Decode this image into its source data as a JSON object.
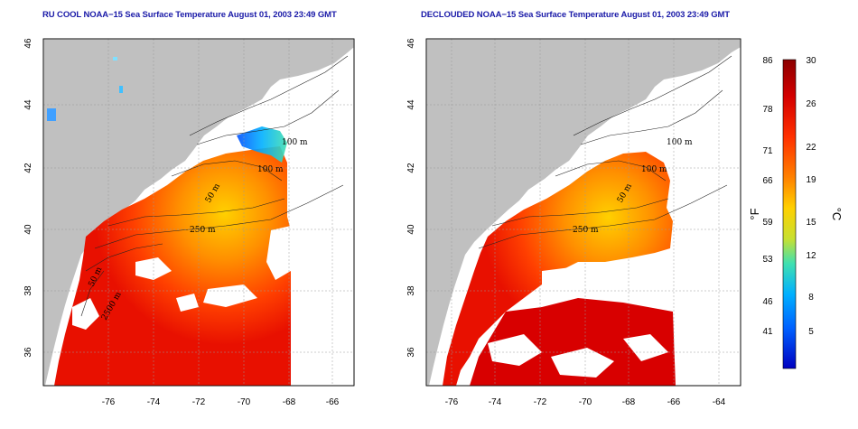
{
  "panels": [
    {
      "id": "ru-cool",
      "title": "RU COOL NOAA−15 Sea Surface Temperature August 01, 2003 23:49 GMT",
      "depth_labels": [
        "100 m",
        "100 m",
        "50 m",
        "250 m",
        "50 m",
        "2500 m"
      ]
    },
    {
      "id": "declouded",
      "title": "DECLOUDED NOAA−15 Sea Surface Temperature August 01, 2003 23:49 GMT",
      "depth_labels": [
        "100 m",
        "100 m",
        "50 m",
        "250 m"
      ]
    }
  ],
  "map": {
    "lon_ticks": [
      "-76",
      "-74",
      "-72",
      "-70",
      "-68",
      "-66",
      "-64"
    ],
    "lat_ticks": [
      "36",
      "38",
      "40",
      "42",
      "44",
      "46"
    ],
    "land_color": "#c0c0c0",
    "ocean_color": "#ffffff"
  },
  "colorbar": {
    "fahrenheit_ticks": [
      "86",
      "78",
      "71",
      "66",
      "59",
      "53",
      "46",
      "41"
    ],
    "celsius_ticks": [
      "30",
      "26",
      "22",
      "19",
      "15",
      "12",
      "8",
      "5"
    ],
    "fahrenheit_unit": "°F",
    "celsius_unit": "°C",
    "colors": [
      "#8b0000",
      "#d40000",
      "#ff3000",
      "#ff8000",
      "#ffd000",
      "#c8e030",
      "#40e0b0",
      "#00b0ff",
      "#0060ff",
      "#0000c0"
    ]
  }
}
